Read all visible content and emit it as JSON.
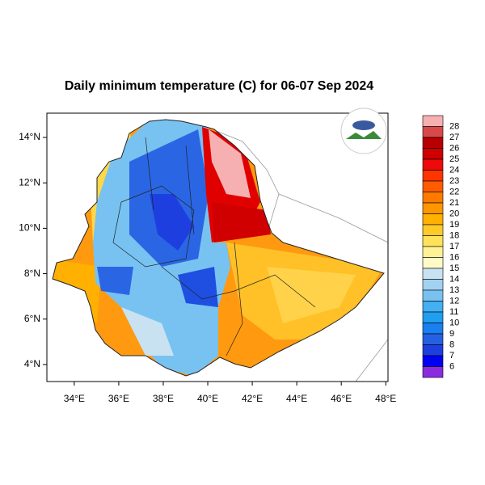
{
  "chart_data": {
    "type": "map",
    "title": "Daily minimum temperature (C) for 06-07 Sep 2024",
    "xlim": [
      32.77,
      48.1
    ],
    "ylim": [
      3.25,
      15.07
    ],
    "xticks": [
      {
        "value": 34,
        "label": "34°E"
      },
      {
        "value": 36,
        "label": "36°E"
      },
      {
        "value": 38,
        "label": "38°E"
      },
      {
        "value": 40,
        "label": "40°E"
      },
      {
        "value": 42,
        "label": "42°E"
      },
      {
        "value": 44,
        "label": "44°E"
      },
      {
        "value": 46,
        "label": "46°E"
      },
      {
        "value": 48,
        "label": "48°E"
      }
    ],
    "yticks": [
      {
        "value": 4,
        "label": "4°N"
      },
      {
        "value": 6,
        "label": "6°N"
      },
      {
        "value": 8,
        "label": "8°N"
      },
      {
        "value": 10,
        "label": "10°N"
      },
      {
        "value": 12,
        "label": "12°N"
      },
      {
        "value": 14,
        "label": "14°N"
      }
    ],
    "colorbar_levels": [
      28,
      27,
      26,
      25,
      24,
      23,
      22,
      21,
      20,
      19,
      18,
      17,
      16,
      15,
      14,
      13,
      12,
      11,
      10,
      9,
      8,
      7,
      6
    ],
    "colorbar_colors": [
      "#f7b0b2",
      "#d84a4a",
      "#b80000",
      "#d00000",
      "#ec0a0a",
      "#ff3500",
      "#ff5c00",
      "#ff7a00",
      "#ff9600",
      "#ffb000",
      "#ffca28",
      "#ffe25a",
      "#fff294",
      "#fffac8",
      "#c9e2f2",
      "#a2d2f2",
      "#78c2f2",
      "#42b0f2",
      "#209ef0",
      "#1a7ff0",
      "#2560e2",
      "#1e3fe0",
      "#0000f2",
      "#8a2be2"
    ]
  }
}
